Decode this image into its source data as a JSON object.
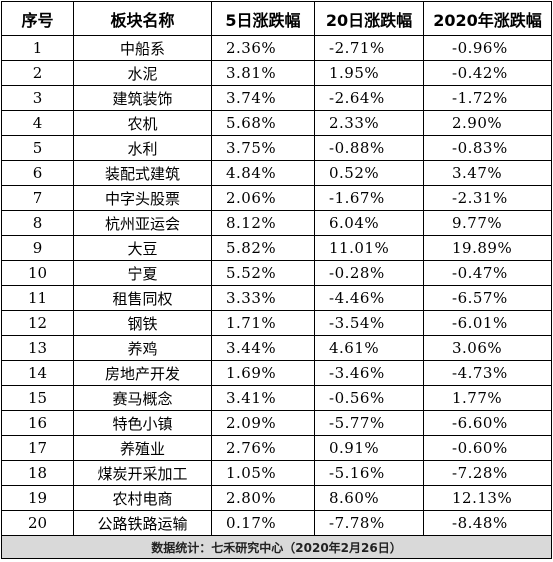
{
  "table": {
    "headers": [
      "序号",
      "板块名称",
      "5日涨跌幅",
      "20日涨跌幅",
      "2020年涨跌幅"
    ],
    "rows": [
      {
        "idx": "1",
        "name": "中船系",
        "d5": "2.36%",
        "d20": "-2.71%",
        "y2020": "-0.96%"
      },
      {
        "idx": "2",
        "name": "水泥",
        "d5": "3.81%",
        "d20": "1.95%",
        "y2020": "-0.42%"
      },
      {
        "idx": "3",
        "name": "建筑装饰",
        "d5": "3.74%",
        "d20": "-2.64%",
        "y2020": "-1.72%"
      },
      {
        "idx": "4",
        "name": "农机",
        "d5": "5.68%",
        "d20": "2.33%",
        "y2020": "2.90%"
      },
      {
        "idx": "5",
        "name": "水利",
        "d5": "3.75%",
        "d20": "-0.88%",
        "y2020": "-0.83%"
      },
      {
        "idx": "6",
        "name": "装配式建筑",
        "d5": "4.84%",
        "d20": "0.52%",
        "y2020": "3.47%"
      },
      {
        "idx": "7",
        "name": "中字头股票",
        "d5": "2.06%",
        "d20": "-1.67%",
        "y2020": "-2.31%"
      },
      {
        "idx": "8",
        "name": "杭州亚运会",
        "d5": "8.12%",
        "d20": "6.04%",
        "y2020": "9.77%"
      },
      {
        "idx": "9",
        "name": "大豆",
        "d5": "5.82%",
        "d20": "11.01%",
        "y2020": "19.89%"
      },
      {
        "idx": "10",
        "name": "宁夏",
        "d5": "5.52%",
        "d20": "-0.28%",
        "y2020": "-0.47%"
      },
      {
        "idx": "11",
        "name": "租售同权",
        "d5": "3.33%",
        "d20": "-4.46%",
        "y2020": "-6.57%"
      },
      {
        "idx": "12",
        "name": "钢铁",
        "d5": "1.71%",
        "d20": "-3.54%",
        "y2020": "-6.01%"
      },
      {
        "idx": "13",
        "name": "养鸡",
        "d5": "3.44%",
        "d20": "4.61%",
        "y2020": "3.06%"
      },
      {
        "idx": "14",
        "name": "房地产开发",
        "d5": "1.69%",
        "d20": "-3.46%",
        "y2020": "-4.73%"
      },
      {
        "idx": "15",
        "name": "赛马概念",
        "d5": "3.41%",
        "d20": "-0.56%",
        "y2020": "1.77%"
      },
      {
        "idx": "16",
        "name": "特色小镇",
        "d5": "2.09%",
        "d20": "-5.77%",
        "y2020": "-6.60%"
      },
      {
        "idx": "17",
        "name": "养殖业",
        "d5": "2.76%",
        "d20": "0.91%",
        "y2020": "-0.60%"
      },
      {
        "idx": "18",
        "name": "煤炭开采加工",
        "d5": "1.05%",
        "d20": "-5.16%",
        "y2020": "-7.28%"
      },
      {
        "idx": "19",
        "name": "农村电商",
        "d5": "2.80%",
        "d20": "8.60%",
        "y2020": "12.13%"
      },
      {
        "idx": "20",
        "name": "公路铁路运输",
        "d5": "0.17%",
        "d20": "-7.78%",
        "y2020": "-8.48%"
      }
    ],
    "footer": "数据统计：七禾研究中心（2020年2月26日）"
  }
}
